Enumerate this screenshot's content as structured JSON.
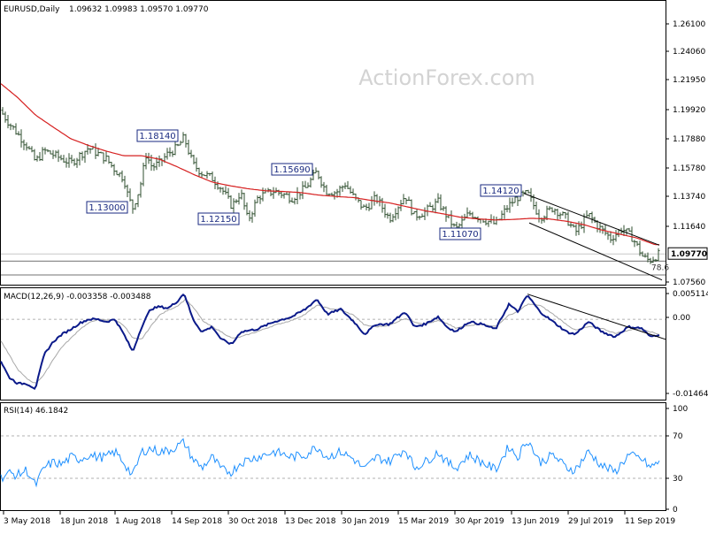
{
  "chart_data": {
    "type": "line",
    "symbol": "EURUSD,Daily",
    "header": {
      "title": "EURUSD,Daily",
      "ohlc": "1.09632 1.09983 1.09570 1.09770"
    },
    "watermark": "ActionForex.com",
    "x_labels": [
      "3 May 2018",
      "18 Jun 2018",
      "1 Aug 2018",
      "14 Sep 2018",
      "30 Oct 2018",
      "13 Dec 2018",
      "30 Jan 2019",
      "15 Mar 2019",
      "30 Apr 2019",
      "13 Jun 2019",
      "29 Jul 2019",
      "11 Sep 2019"
    ],
    "price_panel": {
      "ylim": [
        1.0756,
        1.2796
      ],
      "y_ticks": [
        "1.26100",
        "1.24060",
        "1.21950",
        "1.19920",
        "1.17880",
        "1.15780",
        "1.13740",
        "1.11640",
        "1.07560"
      ],
      "last_price_label": "1.09770",
      "last_price": 1.0977,
      "fib_label": "78.6",
      "annotations": [
        {
          "label": "1.18140",
          "value": 1.1814
        },
        {
          "label": "1.13000",
          "value": 1.13
        },
        {
          "label": "1.12150",
          "value": 1.1215
        },
        {
          "label": "1.15690",
          "value": 1.1569
        },
        {
          "label": "1.14120",
          "value": 1.1412
        },
        {
          "label": "1.11070",
          "value": 1.1107
        }
      ],
      "sma_anchors": [
        [
          0,
          1.2206
        ],
        [
          20,
          1.2101
        ],
        [
          40,
          1.1976
        ],
        [
          60,
          1.1889
        ],
        [
          80,
          1.1805
        ],
        [
          100,
          1.1757
        ],
        [
          120,
          1.1716
        ],
        [
          140,
          1.1683
        ],
        [
          160,
          1.1683
        ],
        [
          180,
          1.1658
        ],
        [
          200,
          1.1604
        ],
        [
          220,
          1.1545
        ],
        [
          240,
          1.1493
        ],
        [
          260,
          1.1467
        ],
        [
          280,
          1.1446
        ],
        [
          300,
          1.1431
        ],
        [
          320,
          1.1426
        ],
        [
          340,
          1.1418
        ],
        [
          360,
          1.14
        ],
        [
          380,
          1.139
        ],
        [
          400,
          1.1382
        ],
        [
          420,
          1.1361
        ],
        [
          440,
          1.1344
        ],
        [
          460,
          1.1316
        ],
        [
          480,
          1.1288
        ],
        [
          500,
          1.1266
        ],
        [
          520,
          1.1241
        ],
        [
          540,
          1.1229
        ],
        [
          560,
          1.1221
        ],
        [
          580,
          1.1225
        ],
        [
          600,
          1.1233
        ],
        [
          620,
          1.1229
        ],
        [
          640,
          1.1212
        ],
        [
          660,
          1.1187
        ],
        [
          680,
          1.1149
        ],
        [
          700,
          1.112
        ],
        [
          720,
          1.1091
        ],
        [
          740,
          1.1044
        ]
      ],
      "price_anchors": [
        [
          0,
          1.201
        ],
        [
          10,
          1.192
        ],
        [
          20,
          1.184
        ],
        [
          30,
          1.176
        ],
        [
          40,
          1.164
        ],
        [
          50,
          1.172
        ],
        [
          60,
          1.169
        ],
        [
          80,
          1.163
        ],
        [
          100,
          1.174
        ],
        [
          120,
          1.166
        ],
        [
          130,
          1.158
        ],
        [
          140,
          1.152
        ],
        [
          145,
          1.138
        ],
        [
          150,
          1.131
        ],
        [
          158,
          1.145
        ],
        [
          165,
          1.169
        ],
        [
          172,
          1.16
        ],
        [
          180,
          1.163
        ],
        [
          190,
          1.17
        ],
        [
          200,
          1.174
        ],
        [
          208,
          1.1814
        ],
        [
          218,
          1.162
        ],
        [
          228,
          1.156
        ],
        [
          240,
          1.152
        ],
        [
          250,
          1.145
        ],
        [
          262,
          1.132
        ],
        [
          272,
          1.142
        ],
        [
          280,
          1.1215
        ],
        [
          292,
          1.139
        ],
        [
          310,
          1.143
        ],
        [
          330,
          1.138
        ],
        [
          345,
          1.145
        ],
        [
          358,
          1.1569
        ],
        [
          368,
          1.143
        ],
        [
          380,
          1.142
        ],
        [
          390,
          1.148
        ],
        [
          400,
          1.138
        ],
        [
          412,
          1.13
        ],
        [
          425,
          1.138
        ],
        [
          440,
          1.123
        ],
        [
          458,
          1.14
        ],
        [
          468,
          1.125
        ],
        [
          480,
          1.128
        ],
        [
          495,
          1.135
        ],
        [
          505,
          1.125
        ],
        [
          515,
          1.115
        ],
        [
          530,
          1.127
        ],
        [
          545,
          1.123
        ],
        [
          560,
          1.119
        ],
        [
          573,
          1.131
        ],
        [
          583,
          1.138
        ],
        [
          596,
          1.1412
        ],
        [
          610,
          1.124
        ],
        [
          625,
          1.131
        ],
        [
          640,
          1.123
        ],
        [
          650,
          1.113
        ],
        [
          665,
          1.126
        ],
        [
          675,
          1.118
        ],
        [
          690,
          1.109
        ],
        [
          703,
          1.116
        ],
        [
          715,
          1.109
        ],
        [
          727,
          1.095
        ],
        [
          734,
          1.093
        ],
        [
          745,
          1.0977
        ]
      ],
      "channel_upper": [
        [
          592,
          1.1412
        ],
        [
          745,
          1.104
        ]
      ],
      "channel_lower": [
        [
          598,
          1.12
        ],
        [
          748,
          1.079
        ]
      ],
      "fib_level": 1.0926,
      "lower_level": 1.0826
    },
    "macd_panel": {
      "label": "MACD(12,26,9) -0.003358 -0.003488",
      "ylim": [
        -0.016,
        0.006
      ],
      "y_ticks": [
        "0.005114",
        "0.00",
        "-0.014647"
      ],
      "macd_anchors": [
        [
          0,
          -0.008
        ],
        [
          10,
          -0.0115
        ],
        [
          20,
          -0.0128
        ],
        [
          30,
          -0.0128
        ],
        [
          40,
          -0.0138
        ],
        [
          50,
          -0.007
        ],
        [
          60,
          -0.0045
        ],
        [
          70,
          -0.003
        ],
        [
          80,
          -0.002
        ],
        [
          90,
          -0.0008
        ],
        [
          100,
          0.0
        ],
        [
          110,
          0.0
        ],
        [
          120,
          -0.0005
        ],
        [
          130,
          0.0
        ],
        [
          140,
          -0.003
        ],
        [
          150,
          -0.0065
        ],
        [
          160,
          -0.0015
        ],
        [
          170,
          0.002
        ],
        [
          180,
          0.0025
        ],
        [
          190,
          0.0022
        ],
        [
          200,
          0.0035
        ],
        [
          208,
          0.0052
        ],
        [
          218,
          0.0
        ],
        [
          228,
          -0.0025
        ],
        [
          240,
          -0.0015
        ],
        [
          250,
          -0.004
        ],
        [
          262,
          -0.005
        ],
        [
          272,
          -0.0025
        ],
        [
          290,
          -0.002
        ],
        [
          310,
          -0.0005
        ],
        [
          330,
          0.0005
        ],
        [
          345,
          0.002
        ],
        [
          358,
          0.004
        ],
        [
          370,
          0.001
        ],
        [
          385,
          0.002
        ],
        [
          400,
          -0.0005
        ],
        [
          412,
          -0.003
        ],
        [
          425,
          -0.001
        ],
        [
          440,
          -0.001
        ],
        [
          458,
          0.0015
        ],
        [
          468,
          -0.0015
        ],
        [
          480,
          -0.001
        ],
        [
          495,
          0.0005
        ],
        [
          505,
          -0.0015
        ],
        [
          515,
          -0.0025
        ],
        [
          530,
          -0.0005
        ],
        [
          545,
          -0.001
        ],
        [
          560,
          -0.002
        ],
        [
          575,
          0.003
        ],
        [
          585,
          0.0015
        ],
        [
          596,
          0.0048
        ],
        [
          610,
          0.0015
        ],
        [
          625,
          -0.0005
        ],
        [
          640,
          -0.0025
        ],
        [
          650,
          -0.003
        ],
        [
          665,
          -0.0005
        ],
        [
          680,
          -0.0025
        ],
        [
          695,
          -0.0035
        ],
        [
          710,
          -0.0015
        ],
        [
          725,
          -0.0018
        ],
        [
          735,
          -0.0035
        ],
        [
          745,
          -0.003
        ]
      ],
      "signal_anchors": [
        [
          0,
          -0.004
        ],
        [
          10,
          -0.007
        ],
        [
          20,
          -0.01
        ],
        [
          30,
          -0.0118
        ],
        [
          40,
          -0.0128
        ],
        [
          50,
          -0.011
        ],
        [
          60,
          -0.008
        ],
        [
          70,
          -0.0055
        ],
        [
          80,
          -0.0038
        ],
        [
          90,
          -0.002
        ],
        [
          100,
          -0.0008
        ],
        [
          110,
          0.0
        ],
        [
          120,
          -0.0002
        ],
        [
          130,
          -0.0001
        ],
        [
          140,
          -0.0012
        ],
        [
          150,
          -0.0038
        ],
        [
          160,
          -0.004
        ],
        [
          170,
          -0.0015
        ],
        [
          180,
          0.0008
        ],
        [
          190,
          0.0018
        ],
        [
          200,
          0.0026
        ],
        [
          210,
          0.004
        ],
        [
          220,
          0.002
        ],
        [
          230,
          -0.0005
        ],
        [
          240,
          -0.0015
        ],
        [
          250,
          -0.0025
        ],
        [
          262,
          -0.0038
        ],
        [
          272,
          -0.0035
        ],
        [
          290,
          -0.0025
        ],
        [
          310,
          -0.0012
        ],
        [
          330,
          -0.0002
        ],
        [
          345,
          0.001
        ],
        [
          358,
          0.0028
        ],
        [
          370,
          0.0022
        ],
        [
          385,
          0.0018
        ],
        [
          400,
          0.0008
        ],
        [
          412,
          -0.0012
        ],
        [
          425,
          -0.0015
        ],
        [
          440,
          -0.0012
        ],
        [
          458,
          0.0002
        ],
        [
          468,
          -0.0005
        ],
        [
          480,
          -0.001
        ],
        [
          495,
          -0.0003
        ],
        [
          505,
          -0.0008
        ],
        [
          515,
          -0.0018
        ],
        [
          530,
          -0.0012
        ],
        [
          545,
          -0.001
        ],
        [
          560,
          -0.0015
        ],
        [
          575,
          0.0008
        ],
        [
          585,
          0.0015
        ],
        [
          596,
          0.003
        ],
        [
          610,
          0.0028
        ],
        [
          625,
          0.001
        ],
        [
          640,
          -0.001
        ],
        [
          650,
          -0.0022
        ],
        [
          665,
          -0.0015
        ],
        [
          680,
          -0.0018
        ],
        [
          695,
          -0.0028
        ],
        [
          710,
          -0.0022
        ],
        [
          725,
          -0.0018
        ],
        [
          735,
          -0.0025
        ],
        [
          745,
          -0.003
        ]
      ],
      "trendline": [
        [
          596,
          0.005
        ],
        [
          752,
          -0.004
        ]
      ]
    },
    "rsi_panel": {
      "label": "RSI(14) 46.1842",
      "ylim": [
        0,
        100
      ],
      "y_ticks": [
        "100",
        "70",
        "30",
        "0"
      ],
      "levels": [
        70,
        30
      ],
      "rsi_anchors": [
        [
          0,
          30
        ],
        [
          10,
          35
        ],
        [
          20,
          33
        ],
        [
          30,
          38
        ],
        [
          40,
          23
        ],
        [
          50,
          40
        ],
        [
          60,
          45
        ],
        [
          70,
          43
        ],
        [
          80,
          50
        ],
        [
          90,
          48
        ],
        [
          100,
          52
        ],
        [
          110,
          50
        ],
        [
          120,
          50
        ],
        [
          130,
          55
        ],
        [
          140,
          45
        ],
        [
          150,
          32
        ],
        [
          160,
          55
        ],
        [
          170,
          58
        ],
        [
          180,
          55
        ],
        [
          190,
          56
        ],
        [
          200,
          60
        ],
        [
          208,
          64
        ],
        [
          218,
          48
        ],
        [
          228,
          40
        ],
        [
          240,
          50
        ],
        [
          250,
          38
        ],
        [
          262,
          36
        ],
        [
          272,
          45
        ],
        [
          290,
          50
        ],
        [
          310,
          55
        ],
        [
          330,
          50
        ],
        [
          345,
          52
        ],
        [
          358,
          60
        ],
        [
          370,
          50
        ],
        [
          385,
          55
        ],
        [
          400,
          48
        ],
        [
          412,
          38
        ],
        [
          425,
          50
        ],
        [
          440,
          46
        ],
        [
          458,
          58
        ],
        [
          468,
          40
        ],
        [
          480,
          45
        ],
        [
          495,
          55
        ],
        [
          505,
          45
        ],
        [
          515,
          40
        ],
        [
          530,
          52
        ],
        [
          545,
          45
        ],
        [
          560,
          38
        ],
        [
          575,
          60
        ],
        [
          585,
          50
        ],
        [
          596,
          67
        ],
        [
          610,
          45
        ],
        [
          625,
          52
        ],
        [
          640,
          40
        ],
        [
          650,
          38
        ],
        [
          665,
          55
        ],
        [
          680,
          42
        ],
        [
          695,
          36
        ],
        [
          710,
          52
        ],
        [
          725,
          48
        ],
        [
          735,
          40
        ],
        [
          745,
          46
        ]
      ]
    }
  }
}
